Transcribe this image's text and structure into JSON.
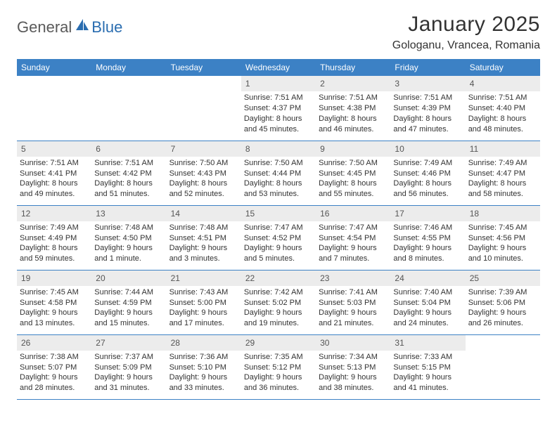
{
  "logo": {
    "general": "General",
    "blue": "Blue"
  },
  "title": "January 2025",
  "location": "Gologanu, Vrancea, Romania",
  "headers": [
    "Sunday",
    "Monday",
    "Tuesday",
    "Wednesday",
    "Thursday",
    "Friday",
    "Saturday"
  ],
  "colors": {
    "header_bg": "#3c81c5",
    "header_text": "#ffffff",
    "daynum_bg": "#ececec",
    "row_border": "#3c81c5",
    "logo_blue": "#2a6db0",
    "logo_gray": "#5a5a5a"
  },
  "weeks": [
    [
      {
        "n": "",
        "sr": "",
        "ss": "",
        "dl": ""
      },
      {
        "n": "",
        "sr": "",
        "ss": "",
        "dl": ""
      },
      {
        "n": "",
        "sr": "",
        "ss": "",
        "dl": ""
      },
      {
        "n": "1",
        "sr": "Sunrise: 7:51 AM",
        "ss": "Sunset: 4:37 PM",
        "dl": "Daylight: 8 hours and 45 minutes."
      },
      {
        "n": "2",
        "sr": "Sunrise: 7:51 AM",
        "ss": "Sunset: 4:38 PM",
        "dl": "Daylight: 8 hours and 46 minutes."
      },
      {
        "n": "3",
        "sr": "Sunrise: 7:51 AM",
        "ss": "Sunset: 4:39 PM",
        "dl": "Daylight: 8 hours and 47 minutes."
      },
      {
        "n": "4",
        "sr": "Sunrise: 7:51 AM",
        "ss": "Sunset: 4:40 PM",
        "dl": "Daylight: 8 hours and 48 minutes."
      }
    ],
    [
      {
        "n": "5",
        "sr": "Sunrise: 7:51 AM",
        "ss": "Sunset: 4:41 PM",
        "dl": "Daylight: 8 hours and 49 minutes."
      },
      {
        "n": "6",
        "sr": "Sunrise: 7:51 AM",
        "ss": "Sunset: 4:42 PM",
        "dl": "Daylight: 8 hours and 51 minutes."
      },
      {
        "n": "7",
        "sr": "Sunrise: 7:50 AM",
        "ss": "Sunset: 4:43 PM",
        "dl": "Daylight: 8 hours and 52 minutes."
      },
      {
        "n": "8",
        "sr": "Sunrise: 7:50 AM",
        "ss": "Sunset: 4:44 PM",
        "dl": "Daylight: 8 hours and 53 minutes."
      },
      {
        "n": "9",
        "sr": "Sunrise: 7:50 AM",
        "ss": "Sunset: 4:45 PM",
        "dl": "Daylight: 8 hours and 55 minutes."
      },
      {
        "n": "10",
        "sr": "Sunrise: 7:49 AM",
        "ss": "Sunset: 4:46 PM",
        "dl": "Daylight: 8 hours and 56 minutes."
      },
      {
        "n": "11",
        "sr": "Sunrise: 7:49 AM",
        "ss": "Sunset: 4:47 PM",
        "dl": "Daylight: 8 hours and 58 minutes."
      }
    ],
    [
      {
        "n": "12",
        "sr": "Sunrise: 7:49 AM",
        "ss": "Sunset: 4:49 PM",
        "dl": "Daylight: 8 hours and 59 minutes."
      },
      {
        "n": "13",
        "sr": "Sunrise: 7:48 AM",
        "ss": "Sunset: 4:50 PM",
        "dl": "Daylight: 9 hours and 1 minute."
      },
      {
        "n": "14",
        "sr": "Sunrise: 7:48 AM",
        "ss": "Sunset: 4:51 PM",
        "dl": "Daylight: 9 hours and 3 minutes."
      },
      {
        "n": "15",
        "sr": "Sunrise: 7:47 AM",
        "ss": "Sunset: 4:52 PM",
        "dl": "Daylight: 9 hours and 5 minutes."
      },
      {
        "n": "16",
        "sr": "Sunrise: 7:47 AM",
        "ss": "Sunset: 4:54 PM",
        "dl": "Daylight: 9 hours and 7 minutes."
      },
      {
        "n": "17",
        "sr": "Sunrise: 7:46 AM",
        "ss": "Sunset: 4:55 PM",
        "dl": "Daylight: 9 hours and 8 minutes."
      },
      {
        "n": "18",
        "sr": "Sunrise: 7:45 AM",
        "ss": "Sunset: 4:56 PM",
        "dl": "Daylight: 9 hours and 10 minutes."
      }
    ],
    [
      {
        "n": "19",
        "sr": "Sunrise: 7:45 AM",
        "ss": "Sunset: 4:58 PM",
        "dl": "Daylight: 9 hours and 13 minutes."
      },
      {
        "n": "20",
        "sr": "Sunrise: 7:44 AM",
        "ss": "Sunset: 4:59 PM",
        "dl": "Daylight: 9 hours and 15 minutes."
      },
      {
        "n": "21",
        "sr": "Sunrise: 7:43 AM",
        "ss": "Sunset: 5:00 PM",
        "dl": "Daylight: 9 hours and 17 minutes."
      },
      {
        "n": "22",
        "sr": "Sunrise: 7:42 AM",
        "ss": "Sunset: 5:02 PM",
        "dl": "Daylight: 9 hours and 19 minutes."
      },
      {
        "n": "23",
        "sr": "Sunrise: 7:41 AM",
        "ss": "Sunset: 5:03 PM",
        "dl": "Daylight: 9 hours and 21 minutes."
      },
      {
        "n": "24",
        "sr": "Sunrise: 7:40 AM",
        "ss": "Sunset: 5:04 PM",
        "dl": "Daylight: 9 hours and 24 minutes."
      },
      {
        "n": "25",
        "sr": "Sunrise: 7:39 AM",
        "ss": "Sunset: 5:06 PM",
        "dl": "Daylight: 9 hours and 26 minutes."
      }
    ],
    [
      {
        "n": "26",
        "sr": "Sunrise: 7:38 AM",
        "ss": "Sunset: 5:07 PM",
        "dl": "Daylight: 9 hours and 28 minutes."
      },
      {
        "n": "27",
        "sr": "Sunrise: 7:37 AM",
        "ss": "Sunset: 5:09 PM",
        "dl": "Daylight: 9 hours and 31 minutes."
      },
      {
        "n": "28",
        "sr": "Sunrise: 7:36 AM",
        "ss": "Sunset: 5:10 PM",
        "dl": "Daylight: 9 hours and 33 minutes."
      },
      {
        "n": "29",
        "sr": "Sunrise: 7:35 AM",
        "ss": "Sunset: 5:12 PM",
        "dl": "Daylight: 9 hours and 36 minutes."
      },
      {
        "n": "30",
        "sr": "Sunrise: 7:34 AM",
        "ss": "Sunset: 5:13 PM",
        "dl": "Daylight: 9 hours and 38 minutes."
      },
      {
        "n": "31",
        "sr": "Sunrise: 7:33 AM",
        "ss": "Sunset: 5:15 PM",
        "dl": "Daylight: 9 hours and 41 minutes."
      },
      {
        "n": "",
        "sr": "",
        "ss": "",
        "dl": ""
      }
    ]
  ]
}
